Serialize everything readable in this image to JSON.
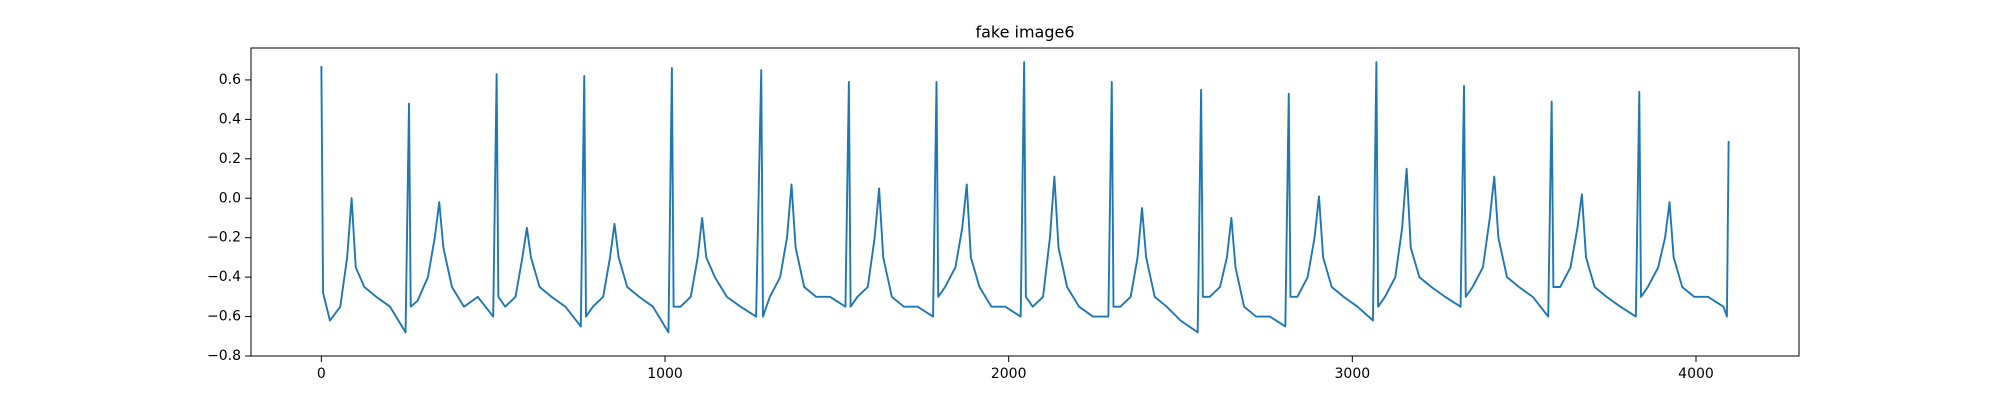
{
  "chart_data": {
    "type": "line",
    "title": "fake image6",
    "x": [
      0,
      5,
      25,
      55,
      75,
      88,
      100,
      125,
      160,
      200,
      245,
      255,
      260,
      280,
      310,
      330,
      343,
      355,
      380,
      415,
      455,
      500,
      510,
      515,
      535,
      565,
      585,
      598,
      610,
      635,
      670,
      710,
      755,
      765,
      770,
      790,
      820,
      840,
      853,
      865,
      890,
      925,
      965,
      1010,
      1020,
      1025,
      1045,
      1075,
      1095,
      1108,
      1120,
      1145,
      1180,
      1220,
      1265,
      1280,
      1285,
      1305,
      1335,
      1355,
      1368,
      1380,
      1405,
      1440,
      1480,
      1525,
      1535,
      1540,
      1560,
      1590,
      1610,
      1623,
      1635,
      1660,
      1695,
      1735,
      1780,
      1790,
      1795,
      1815,
      1845,
      1865,
      1878,
      1890,
      1915,
      1950,
      1990,
      2035,
      2045,
      2050,
      2070,
      2100,
      2120,
      2133,
      2145,
      2170,
      2205,
      2245,
      2290,
      2300,
      2305,
      2325,
      2355,
      2375,
      2388,
      2400,
      2425,
      2460,
      2500,
      2550,
      2560,
      2565,
      2585,
      2615,
      2635,
      2648,
      2660,
      2685,
      2720,
      2760,
      2805,
      2815,
      2820,
      2840,
      2870,
      2890,
      2903,
      2915,
      2940,
      2975,
      3015,
      3060,
      3070,
      3075,
      3095,
      3125,
      3145,
      3158,
      3170,
      3195,
      3230,
      3270,
      3315,
      3325,
      3330,
      3350,
      3380,
      3400,
      3413,
      3425,
      3450,
      3485,
      3525,
      3570,
      3580,
      3585,
      3605,
      3635,
      3655,
      3668,
      3680,
      3705,
      3740,
      3780,
      3825,
      3835,
      3840,
      3860,
      3890,
      3910,
      3923,
      3935,
      3960,
      3995,
      4035,
      4080,
      4090,
      4095
    ],
    "series": [
      {
        "color": "#1f77b4",
        "values": [
          0.67,
          -0.48,
          -0.62,
          -0.55,
          -0.3,
          0.0,
          -0.35,
          -0.45,
          -0.5,
          -0.55,
          -0.68,
          0.48,
          -0.55,
          -0.52,
          -0.4,
          -0.2,
          -0.02,
          -0.25,
          -0.45,
          -0.55,
          -0.5,
          -0.6,
          0.63,
          -0.5,
          -0.55,
          -0.5,
          -0.3,
          -0.15,
          -0.3,
          -0.45,
          -0.5,
          -0.55,
          -0.65,
          0.62,
          -0.6,
          -0.55,
          -0.5,
          -0.3,
          -0.13,
          -0.3,
          -0.45,
          -0.5,
          -0.55,
          -0.68,
          0.66,
          -0.55,
          -0.55,
          -0.5,
          -0.3,
          -0.1,
          -0.3,
          -0.4,
          -0.5,
          -0.55,
          -0.6,
          0.65,
          -0.6,
          -0.5,
          -0.4,
          -0.2,
          0.07,
          -0.25,
          -0.45,
          -0.5,
          -0.5,
          -0.55,
          0.59,
          -0.55,
          -0.5,
          -0.45,
          -0.2,
          0.05,
          -0.3,
          -0.5,
          -0.55,
          -0.55,
          -0.6,
          0.59,
          -0.5,
          -0.45,
          -0.35,
          -0.15,
          0.07,
          -0.3,
          -0.45,
          -0.55,
          -0.55,
          -0.6,
          0.69,
          -0.5,
          -0.55,
          -0.5,
          -0.2,
          0.11,
          -0.25,
          -0.45,
          -0.55,
          -0.6,
          -0.6,
          0.59,
          -0.55,
          -0.55,
          -0.5,
          -0.3,
          -0.05,
          -0.3,
          -0.5,
          -0.55,
          -0.62,
          -0.68,
          0.55,
          -0.5,
          -0.5,
          -0.45,
          -0.3,
          -0.1,
          -0.35,
          -0.55,
          -0.6,
          -0.6,
          -0.65,
          0.53,
          -0.5,
          -0.5,
          -0.4,
          -0.2,
          0.01,
          -0.3,
          -0.45,
          -0.5,
          -0.55,
          -0.62,
          0.69,
          -0.55,
          -0.5,
          -0.4,
          -0.15,
          0.15,
          -0.25,
          -0.4,
          -0.45,
          -0.5,
          -0.55,
          0.57,
          -0.5,
          -0.45,
          -0.35,
          -0.1,
          0.11,
          -0.2,
          -0.4,
          -0.45,
          -0.5,
          -0.6,
          0.49,
          -0.45,
          -0.45,
          -0.35,
          -0.15,
          0.02,
          -0.3,
          -0.45,
          -0.5,
          -0.55,
          -0.6,
          0.54,
          -0.5,
          -0.45,
          -0.35,
          -0.2,
          -0.02,
          -0.3,
          -0.45,
          -0.5,
          -0.5,
          -0.55,
          -0.6,
          0.29
        ]
      }
    ],
    "xlim": [
      -204.75,
      4299.75
    ],
    "xticks": [
      0,
      1000,
      2000,
      3000,
      4000
    ],
    "ylim": [
      -0.8,
      0.762
    ],
    "yticks": [
      {
        "value": -0.8,
        "label": "−0.8"
      },
      {
        "value": -0.6,
        "label": "−0.6"
      },
      {
        "value": -0.4,
        "label": "−0.4"
      },
      {
        "value": -0.2,
        "label": "−0.2"
      },
      {
        "value": 0.0,
        "label": "0.0"
      },
      0.2,
      0.4,
      0.6
    ],
    "grid": false
  }
}
